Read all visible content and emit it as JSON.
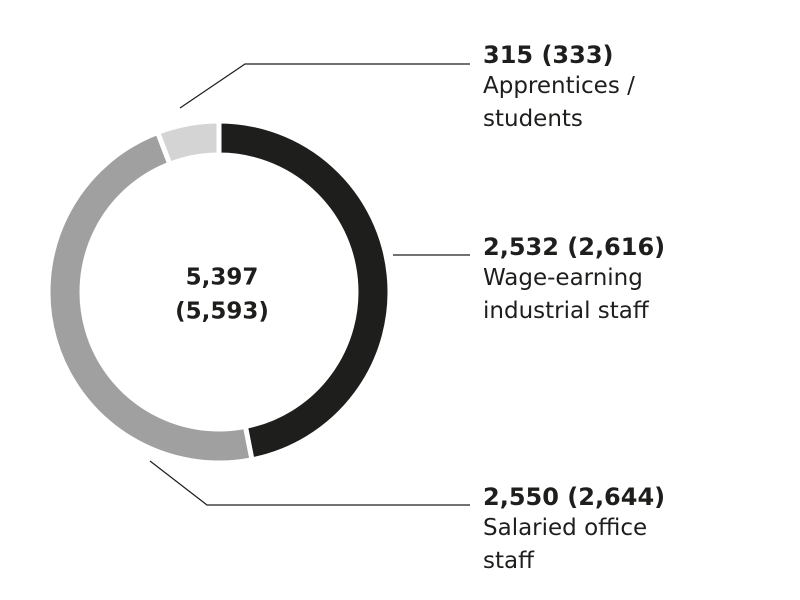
{
  "chart_data": {
    "type": "pie",
    "categories": [
      "Wage-earning industrial staff",
      "Salaried office staff",
      "Apprentices / students"
    ],
    "values": [
      2532,
      2550,
      315
    ],
    "value_labels": [
      "2,532 (2,616)",
      "2,550 (2,644)",
      "315 (333)"
    ],
    "colors": [
      "#1e1e1c",
      "#a0a0a0",
      "#d4d4d4"
    ],
    "center_label": [
      "5,397",
      "(5,593)"
    ]
  }
}
